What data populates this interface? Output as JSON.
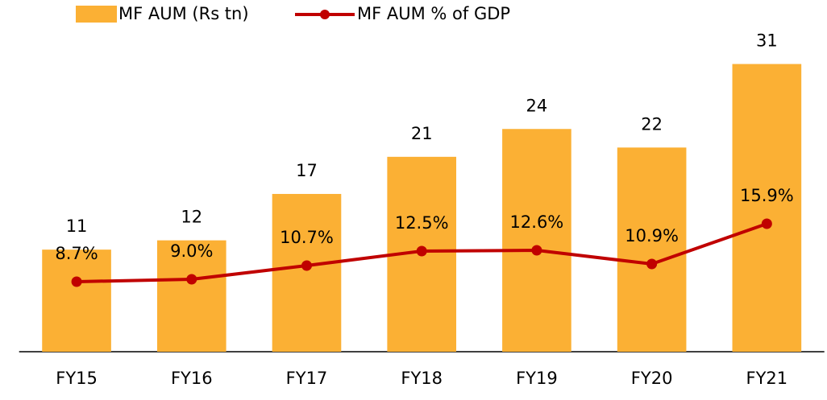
{
  "chart_data": {
    "type": "bar",
    "categories": [
      "FY15",
      "FY16",
      "FY17",
      "FY18",
      "FY19",
      "FY20",
      "FY21"
    ],
    "series": [
      {
        "name": "MF AUM (Rs tn)",
        "type": "bar",
        "color": "#fbb034",
        "values": [
          11,
          12,
          17,
          21,
          24,
          22,
          31
        ]
      },
      {
        "name": "MF AUM % of GDP",
        "type": "line",
        "axis": "y2",
        "color": "#c00000",
        "values": [
          8.7,
          9.0,
          10.7,
          12.5,
          12.6,
          10.9,
          15.9
        ],
        "value_labels": [
          "8.7%",
          "9.0%",
          "10.7%",
          "12.5%",
          "12.6%",
          "10.9%",
          "15.9%"
        ]
      }
    ],
    "ylim": [
      0,
      32
    ],
    "y2lim": [
      0,
      36.9
    ],
    "grid": false
  }
}
